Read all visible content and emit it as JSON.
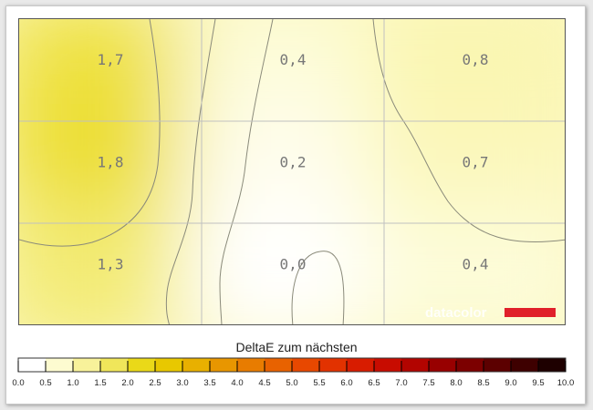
{
  "chart_data": {
    "type": "heatmap",
    "title": "",
    "rows": 3,
    "cols": 3,
    "values": [
      [
        "1,7",
        "0,4",
        "0,8"
      ],
      [
        "1,8",
        "0,2",
        "0,7"
      ],
      [
        "1,3",
        "0,0",
        "0,4"
      ]
    ],
    "numeric_values": [
      [
        1.7,
        0.4,
        0.8
      ],
      [
        1.8,
        0.2,
        0.7
      ],
      [
        1.3,
        0.0,
        0.4
      ]
    ],
    "grid": true,
    "colorbar": {
      "label": "DeltaE zum nächsten",
      "min": 0.0,
      "max": 10.0,
      "ticks": [
        "0.0",
        "0.5",
        "1.0",
        "1.5",
        "2.0",
        "2.5",
        "3.0",
        "3.5",
        "4.0",
        "4.5",
        "5.0",
        "5.5",
        "6.0",
        "6.5",
        "7.0",
        "7.5",
        "8.0",
        "8.5",
        "9.0",
        "9.5",
        "10.0"
      ],
      "colors": [
        "#ffffff",
        "#fdfbd0",
        "#f8f29a",
        "#f0e65a",
        "#ead918",
        "#e8c800",
        "#e8b000",
        "#e89600",
        "#e87c00",
        "#e86200",
        "#e84800",
        "#e23200",
        "#d81c00",
        "#c80c00",
        "#b20400",
        "#980000",
        "#7c0000",
        "#5c0000",
        "#3e0000",
        "#1e0000"
      ]
    }
  },
  "watermark": {
    "text": "datacolor",
    "accent_color": "#e0202a"
  }
}
